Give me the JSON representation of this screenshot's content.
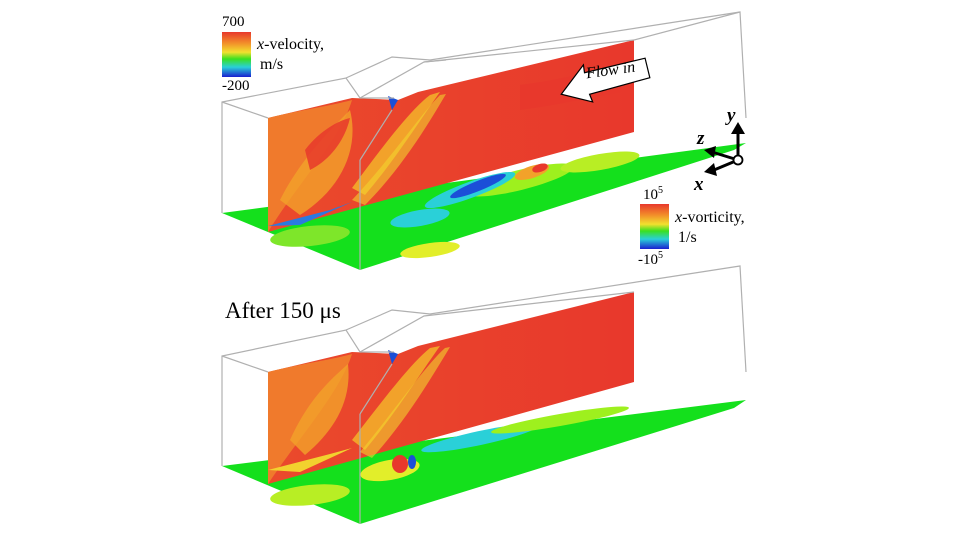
{
  "velocity_colorbar": {
    "max": "700",
    "min": "-200",
    "var": "x",
    "title_rest": "-velocity,",
    "unit": "m/s"
  },
  "vorticity_colorbar": {
    "max_base": "10",
    "max_exp": "5",
    "min_base": "-10",
    "min_exp": "5",
    "var": "x",
    "title_rest": "-vorticity,",
    "unit": "1/s"
  },
  "flow_arrow_label": "Flow in",
  "axes": {
    "y": "y",
    "z": "z",
    "x": "x"
  },
  "bottom_caption": "After 150 μs",
  "colors": {
    "red": "#e8382c",
    "orange": "#f07a2c",
    "yellow": "#f2d22e",
    "green": "#14e01c",
    "cyan": "#2ad0d8",
    "blue": "#1b4fd8",
    "navy": "#1a1f9a"
  }
}
